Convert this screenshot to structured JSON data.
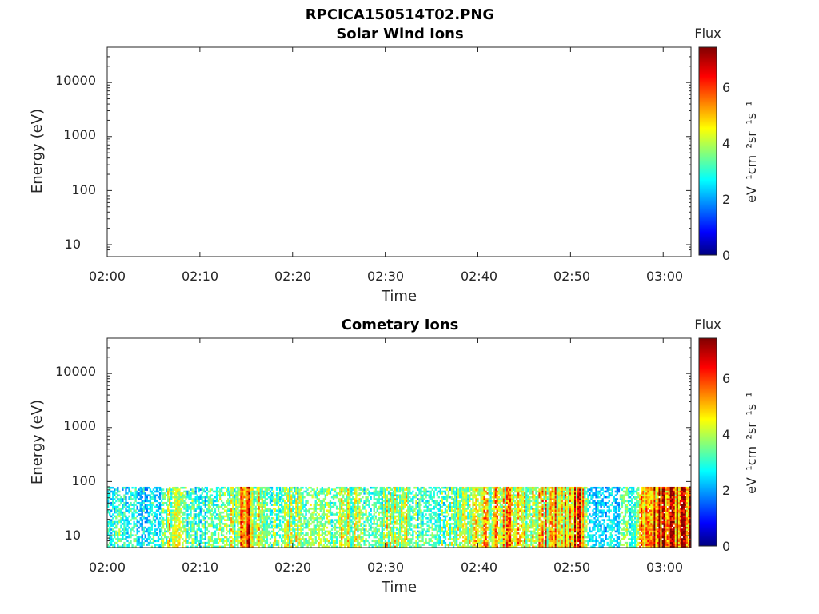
{
  "figure_title": "RPCICA150514T02.PNG",
  "colors": {
    "colormap": "jet",
    "axis": "#262626"
  },
  "chart_data": [
    {
      "type": "heatmap",
      "title": "Solar Wind Ions",
      "xlabel": "Time",
      "ylabel": "Energy (eV)",
      "xticks": [
        "02:00",
        "02:10",
        "02:20",
        "02:30",
        "02:40",
        "02:50",
        "03:00"
      ],
      "yticks": [
        "10",
        "100",
        "1000",
        "10000"
      ],
      "yscale": "log",
      "xlim": [
        "02:00",
        "03:03"
      ],
      "ylim": [
        6,
        45000
      ],
      "colorbar": {
        "label": "Flux",
        "units": "eV⁻¹cm⁻²sr⁻¹s⁻¹",
        "ticks": [
          "0",
          "2",
          "4",
          "6"
        ],
        "range": [
          0,
          7.4
        ]
      },
      "data": []
    },
    {
      "type": "heatmap",
      "title": "Cometary Ions",
      "xlabel": "Time",
      "ylabel": "Energy (eV)",
      "xticks": [
        "02:00",
        "02:10",
        "02:20",
        "02:30",
        "02:40",
        "02:50",
        "03:00"
      ],
      "yticks": [
        "10",
        "100",
        "1000",
        "10000"
      ],
      "yscale": "log",
      "xlim": [
        "02:00",
        "03:03"
      ],
      "ylim": [
        6,
        45000
      ],
      "energy_range_with_counts": [
        6,
        80
      ],
      "colorbar": {
        "label": "Flux",
        "units": "eV⁻¹cm⁻²sr⁻¹s⁻¹",
        "ticks": [
          "0",
          "2",
          "4",
          "6"
        ],
        "range": [
          0,
          7.4
        ]
      },
      "flux_profile": {
        "time": [
          "02:00",
          "02:02",
          "02:04",
          "02:06",
          "02:07",
          "02:08",
          "02:10",
          "02:12",
          "02:14",
          "02:15",
          "02:16",
          "02:18",
          "02:20",
          "02:22",
          "02:24",
          "02:26",
          "02:28",
          "02:30",
          "02:32",
          "02:34",
          "02:36",
          "02:38",
          "02:40",
          "02:42",
          "02:43",
          "02:44",
          "02:46",
          "02:48",
          "02:50",
          "02:51",
          "02:52",
          "02:54",
          "02:56",
          "02:58",
          "02:59",
          "03:00",
          "03:02",
          "03:03"
        ],
        "max_flux": [
          3.2,
          3.4,
          3.0,
          3.6,
          5.2,
          4.0,
          3.6,
          3.8,
          4.4,
          6.8,
          4.6,
          4.0,
          4.4,
          4.0,
          3.8,
          4.6,
          3.8,
          4.4,
          4.6,
          3.4,
          3.8,
          4.4,
          4.8,
          5.0,
          5.6,
          4.8,
          4.8,
          5.4,
          5.8,
          6.8,
          3.0,
          2.6,
          3.6,
          5.6,
          6.4,
          6.8,
          7.0,
          6.8
        ]
      }
    }
  ]
}
